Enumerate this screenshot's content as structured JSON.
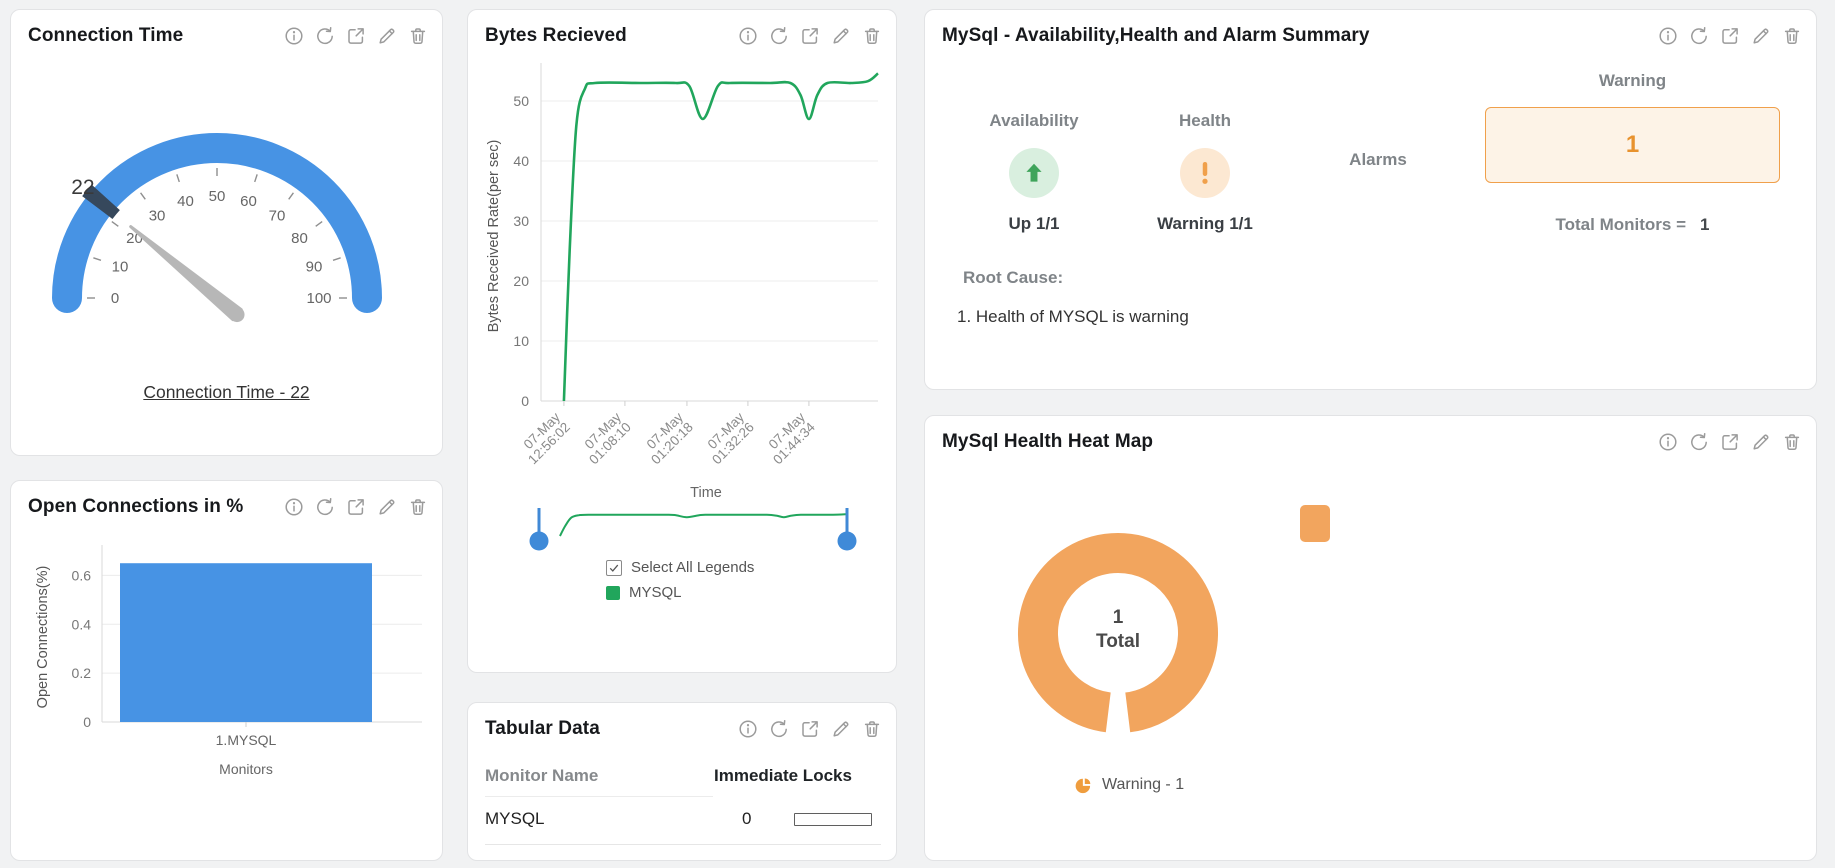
{
  "toolbar_icons": [
    "info-icon",
    "refresh-icon",
    "open-icon",
    "edit-icon",
    "delete-icon"
  ],
  "colors": {
    "blue": "#4793e4",
    "green": "#21a65c",
    "arrow_green": "#3fa45b",
    "light_green_bg": "#d9efdf",
    "orange": "#f0a04b",
    "light_orange_bg": "#fce8d2",
    "warning_box_bg": "#fdf3e7",
    "donut_orange": "#f2a55e",
    "icon_gray": "#9b9b9b"
  },
  "cards": {
    "connection_time": {
      "title": "Connection Time",
      "footer_link": "Connection Time - 22"
    },
    "open_connections": {
      "title": "Open Connections in %"
    },
    "bytes_received": {
      "title": "Bytes Recieved",
      "select_all_label": "Select All Legends",
      "series_legend": "MYSQL"
    },
    "tabular_data": {
      "title": "Tabular Data",
      "columns": [
        "Monitor Name",
        "Immediate Locks"
      ],
      "rows": [
        {
          "monitor": "MYSQL",
          "value": "0"
        }
      ]
    },
    "summary": {
      "title": "MySql - Availability,Health and Alarm Summary",
      "availability": {
        "label": "Availability",
        "status": "Up 1/1"
      },
      "health": {
        "label": "Health",
        "status": "Warning 1/1"
      },
      "alarms_label": "Alarms",
      "warning_label": "Warning",
      "warning_count": "1",
      "total_monitors_label": "Total Monitors =",
      "total_monitors_value": "1",
      "root_cause_label": "Root Cause:",
      "root_cause_items": [
        "1. Health of MYSQL is warning"
      ]
    },
    "heat_map": {
      "title": "MySql Health Heat Map",
      "center_value": "1",
      "center_label": "Total",
      "legend_label": "Warning - 1"
    }
  },
  "chart_data": [
    {
      "id": "connection_time_gauge",
      "type": "gauge",
      "title": "Connection Time",
      "min": 0,
      "max": 100,
      "ticks": [
        0,
        10,
        20,
        30,
        40,
        50,
        60,
        70,
        80,
        90,
        100
      ],
      "value": 22,
      "value_label": "22",
      "arc_color": "#4793e4",
      "marker_color": "#36485c",
      "needle_color": "#b7b7b7"
    },
    {
      "id": "bytes_received_line",
      "type": "line",
      "title": "Bytes Recieved",
      "xlabel": "Time",
      "ylabel": "Bytes Received Rate(per sec)",
      "ylim": [
        0,
        55
      ],
      "yticks": [
        0,
        10,
        20,
        30,
        40,
        50
      ],
      "x_ticklabels": [
        "07-May 12:56:02",
        "07-May 01:08:10",
        "07-May 01:20:18",
        "07-May 01:32:26",
        "07-May 01:44:34"
      ],
      "grid": true,
      "has_range_slider": true,
      "legend_position": "bottom",
      "series": [
        {
          "name": "MYSQL",
          "color": "#21a65c",
          "points": [
            [
              6.8,
              0
            ],
            [
              8.5,
              25
            ],
            [
              10.5,
              46
            ],
            [
              13,
              52
            ],
            [
              16,
              53
            ],
            [
              30,
              53
            ],
            [
              40,
              53
            ],
            [
              44,
              52.5
            ],
            [
              48,
              47
            ],
            [
              52.5,
              52.5
            ],
            [
              56,
              53
            ],
            [
              68,
              53
            ],
            [
              74,
              53
            ],
            [
              77,
              51
            ],
            [
              79.5,
              47
            ],
            [
              82,
              51
            ],
            [
              85,
              53
            ],
            [
              92,
              53
            ],
            [
              97,
              53.3
            ],
            [
              100,
              54.6
            ]
          ]
        }
      ]
    },
    {
      "id": "open_connections_bar",
      "type": "bar",
      "title": "Open Connections in %",
      "categories": [
        "1.MYSQL"
      ],
      "values": [
        0.65
      ],
      "xlabel": "Monitors",
      "ylabel": "Open Connections(%)",
      "yticks": [
        0,
        0.2,
        0.4,
        0.6
      ],
      "ylim": [
        0,
        0.7
      ],
      "grid": true,
      "bar_color": "#4793e4"
    },
    {
      "id": "health_heatmap_donut",
      "type": "donut",
      "title": "MySql Health Heat Map",
      "slices": [
        {
          "label": "Warning",
          "value": 1,
          "color": "#f2a55e"
        }
      ],
      "total": 1,
      "center_value": "1",
      "center_label": "Total",
      "legend": [
        "Warning - 1"
      ],
      "heat_cell_color": "#f2a55e"
    }
  ]
}
